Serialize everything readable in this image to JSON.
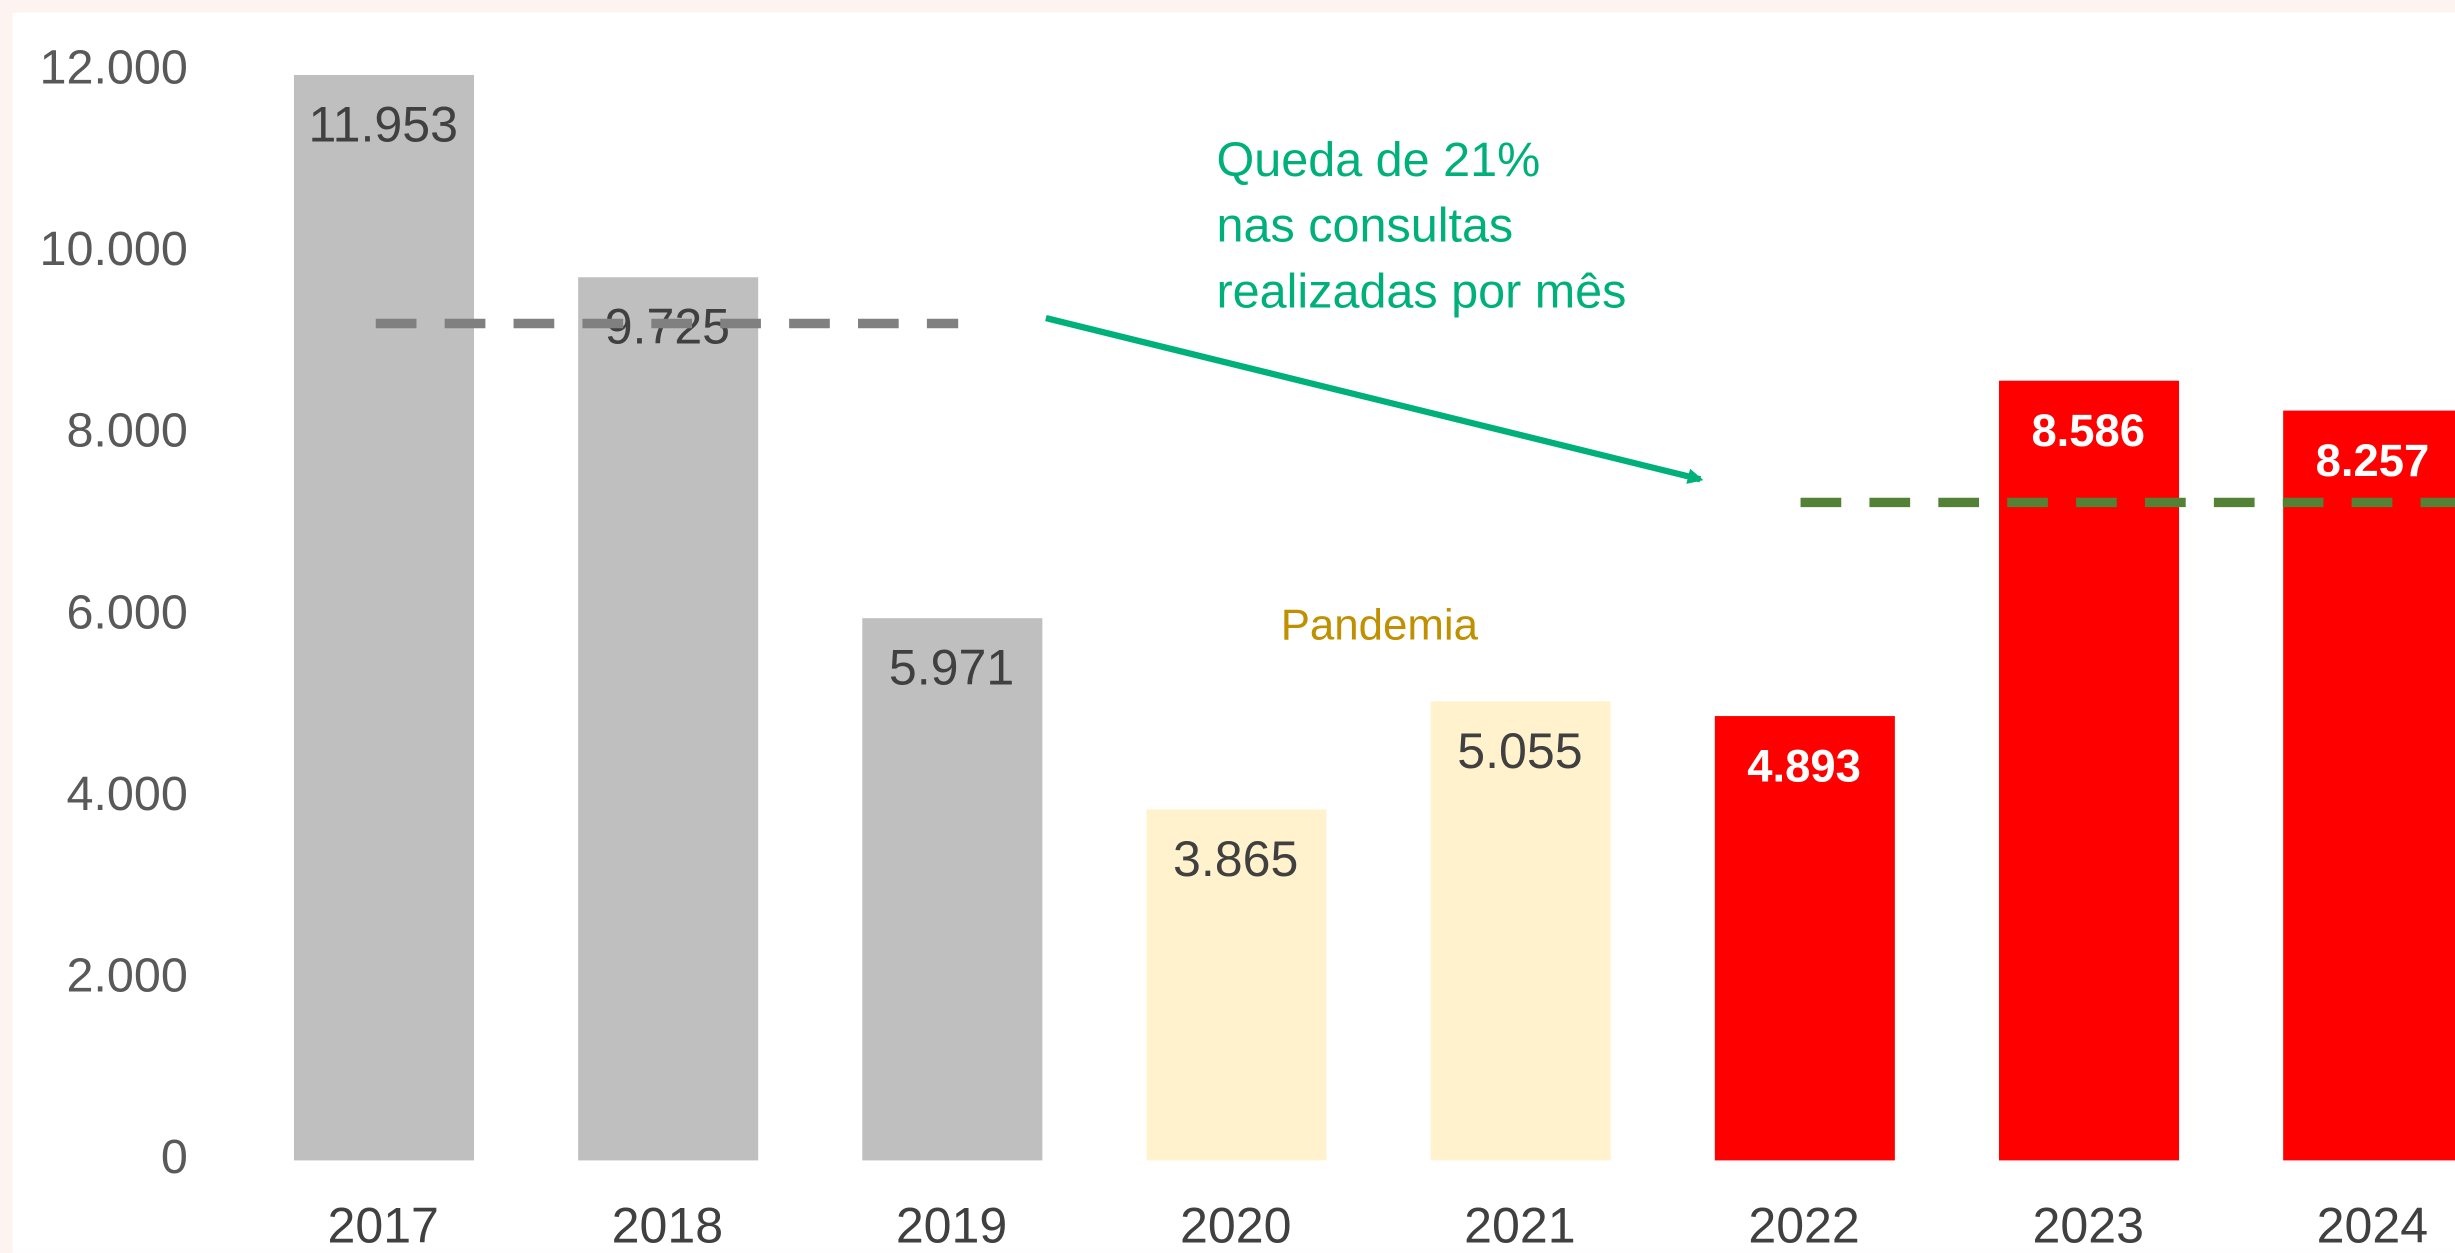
{
  "chart_data": {
    "type": "bar",
    "categories": [
      "2017",
      "2018",
      "2019",
      "2020",
      "2021",
      "2022",
      "2023",
      "2024"
    ],
    "values": [
      11953,
      9725,
      5971,
      3865,
      5055,
      4893,
      8586,
      8257
    ],
    "value_labels": [
      "11.953",
      "9.725",
      "5.971",
      "3.865",
      "5.055",
      "4.893",
      "8.586",
      "8.257"
    ],
    "colors": [
      "#bfbfbf",
      "#bfbfbf",
      "#bfbfbf",
      "#fff2cc",
      "#fff2cc",
      "#ff0000",
      "#ff0000",
      "#ff0000"
    ],
    "value_label_colors": [
      "#404040",
      "#404040",
      "#404040",
      "#404040",
      "#404040",
      "#ffffff",
      "#ffffff",
      "#ffffff"
    ],
    "ylim": [
      0,
      12000
    ],
    "yticks": [
      0,
      {
        "value": 2000,
        "label": "2.000"
      },
      {
        "value": 4000,
        "label": "4.000"
      },
      {
        "value": 6000,
        "label": "6.000"
      },
      {
        "value": 8000,
        "label": "8.000"
      },
      {
        "value": 10000,
        "label": "10.000"
      },
      {
        "value": 12000,
        "label": "12.000"
      }
    ],
    "reference_lines": [
      {
        "value": 9216,
        "color": "#808080"
      },
      {
        "value": 7245,
        "color": "#538135"
      }
    ],
    "annotations": {
      "drop": [
        "Queda de 21%",
        "nas consultas",
        "realizadas por mês"
      ],
      "drop_color": "#00b07a",
      "pandemic": "Pandemia",
      "pandemic_color": "#bf9000"
    }
  }
}
